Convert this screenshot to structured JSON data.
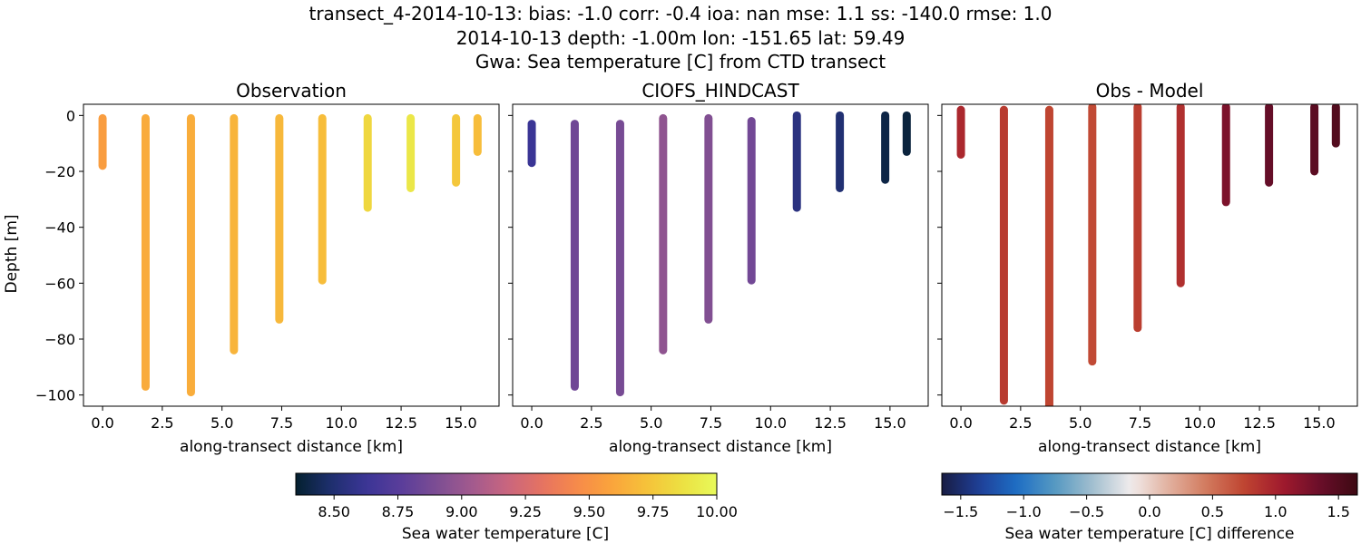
{
  "figure": {
    "title_lines": [
      "transect_4-2014-10-13: bias: -1.0  corr: -0.4  ioa: nan  mse: 1.1  ss: -140.0  rmse: 1.0",
      "2014-10-13 depth: -1.00m lon: -151.65 lat: 59.49",
      "Gwa: Sea temperature [C] from CTD transect"
    ]
  },
  "chart_data": [
    {
      "type": "scatter",
      "title": "Observation",
      "xlabel": "along-transect distance [km]",
      "ylabel": "Depth [m]",
      "xlim": [
        -0.8,
        16.6
      ],
      "ylim": [
        -104,
        4
      ],
      "xticks": [
        "0.0",
        "2.5",
        "5.0",
        "7.5",
        "10.0",
        "12.5",
        "15.0"
      ],
      "yticks": [
        "0",
        "−20",
        "−40",
        "−60",
        "−80",
        "−100"
      ],
      "colormap": "thermal",
      "clim": [
        8.35,
        10.0
      ],
      "profiles": [
        {
          "x": 0.0,
          "top": -1,
          "bottom": -18,
          "value": 9.55
        },
        {
          "x": 1.8,
          "top": -1,
          "bottom": -97,
          "value": 9.62
        },
        {
          "x": 3.7,
          "top": -1,
          "bottom": -99,
          "value": 9.63
        },
        {
          "x": 5.5,
          "top": -1,
          "bottom": -84,
          "value": 9.66
        },
        {
          "x": 7.4,
          "top": -1,
          "bottom": -73,
          "value": 9.68
        },
        {
          "x": 9.2,
          "top": -1,
          "bottom": -59,
          "value": 9.7
        },
        {
          "x": 11.1,
          "top": -1,
          "bottom": -33,
          "value": 9.82
        },
        {
          "x": 12.9,
          "top": -1,
          "bottom": -26,
          "value": 9.9
        },
        {
          "x": 14.8,
          "top": -1,
          "bottom": -24,
          "value": 9.75
        },
        {
          "x": 15.7,
          "top": -1,
          "bottom": -13,
          "value": 9.7
        }
      ]
    },
    {
      "type": "scatter",
      "title": "CIOFS_HINDCAST",
      "xlabel": "along-transect distance [km]",
      "xlim": [
        -0.8,
        16.6
      ],
      "ylim": [
        -104,
        4
      ],
      "xticks": [
        "0.0",
        "2.5",
        "5.0",
        "7.5",
        "10.0",
        "12.5",
        "15.0"
      ],
      "colormap": "thermal",
      "clim": [
        8.35,
        10.0
      ],
      "profiles": [
        {
          "x": 0.0,
          "top": -3,
          "bottom": -17,
          "value": 8.62
        },
        {
          "x": 1.8,
          "top": -3,
          "bottom": -97,
          "value": 8.85
        },
        {
          "x": 3.7,
          "top": -3,
          "bottom": -99,
          "value": 8.88
        },
        {
          "x": 5.5,
          "top": -1,
          "bottom": -84,
          "value": 8.97
        },
        {
          "x": 7.4,
          "top": -1,
          "bottom": -73,
          "value": 8.92
        },
        {
          "x": 9.2,
          "top": -2,
          "bottom": -59,
          "value": 8.86
        },
        {
          "x": 11.1,
          "top": 0,
          "bottom": -33,
          "value": 8.55
        },
        {
          "x": 12.9,
          "top": 0,
          "bottom": -26,
          "value": 8.5
        },
        {
          "x": 14.8,
          "top": 0,
          "bottom": -23,
          "value": 8.4
        },
        {
          "x": 15.7,
          "top": 0,
          "bottom": -13,
          "value": 8.38
        }
      ]
    },
    {
      "type": "scatter",
      "title": "Obs - Model",
      "xlabel": "along-transect distance [km]",
      "xlim": [
        -0.8,
        16.6
      ],
      "ylim": [
        -104,
        4
      ],
      "xticks": [
        "0.0",
        "2.5",
        "5.0",
        "7.5",
        "10.0",
        "12.5",
        "15.0"
      ],
      "colormap": "balance",
      "clim": [
        -1.65,
        1.65
      ],
      "profiles": [
        {
          "x": 0.0,
          "top": 2,
          "bottom": -14,
          "value": 0.95
        },
        {
          "x": 1.8,
          "top": 2,
          "bottom": -102,
          "value": 0.82
        },
        {
          "x": 3.7,
          "top": 2,
          "bottom": -104,
          "value": 0.75
        },
        {
          "x": 5.5,
          "top": 3,
          "bottom": -88,
          "value": 0.72
        },
        {
          "x": 7.4,
          "top": 3,
          "bottom": -76,
          "value": 0.8
        },
        {
          "x": 9.2,
          "top": 3,
          "bottom": -60,
          "value": 0.9
        },
        {
          "x": 11.1,
          "top": 3,
          "bottom": -31,
          "value": 1.25
        },
        {
          "x": 12.9,
          "top": 3,
          "bottom": -24,
          "value": 1.38
        },
        {
          "x": 14.8,
          "top": 3,
          "bottom": -20,
          "value": 1.45
        },
        {
          "x": 15.7,
          "top": 3,
          "bottom": -10,
          "value": 1.5
        }
      ]
    }
  ],
  "colorbars": [
    {
      "label": "Sea water temperature [C]",
      "colormap": "thermal",
      "clim": [
        8.35,
        10.0
      ],
      "ticks": [
        8.5,
        8.75,
        9.0,
        9.25,
        9.5,
        9.75,
        10.0
      ],
      "tick_labels": [
        "8.50",
        "8.75",
        "9.00",
        "9.25",
        "9.50",
        "9.75",
        "10.00"
      ]
    },
    {
      "label": "Sea water temperature [C] difference",
      "colormap": "balance",
      "clim": [
        -1.65,
        1.65
      ],
      "ticks": [
        -1.5,
        -1.0,
        -0.5,
        0.0,
        0.5,
        1.0,
        1.5
      ],
      "tick_labels": [
        "−1.5",
        "−1.0",
        "−0.5",
        "0.0",
        "0.5",
        "1.0",
        "1.5"
      ]
    }
  ],
  "colors": {
    "thermal": [
      "#04202f",
      "#1e2f6e",
      "#3b3596",
      "#5a3d9a",
      "#7c4d93",
      "#a15a8e",
      "#c8657f",
      "#e57262",
      "#f78a4a",
      "#faa43c",
      "#f6c23a",
      "#ece041",
      "#e8fa5b"
    ],
    "balance": [
      "#181c43",
      "#1f3f98",
      "#1e6fc4",
      "#5699c2",
      "#a2bfcf",
      "#f1ecec",
      "#e2b19f",
      "#d27a5e",
      "#bf4531",
      "#a11a2d",
      "#6a0e2a",
      "#3c0912"
    ]
  }
}
